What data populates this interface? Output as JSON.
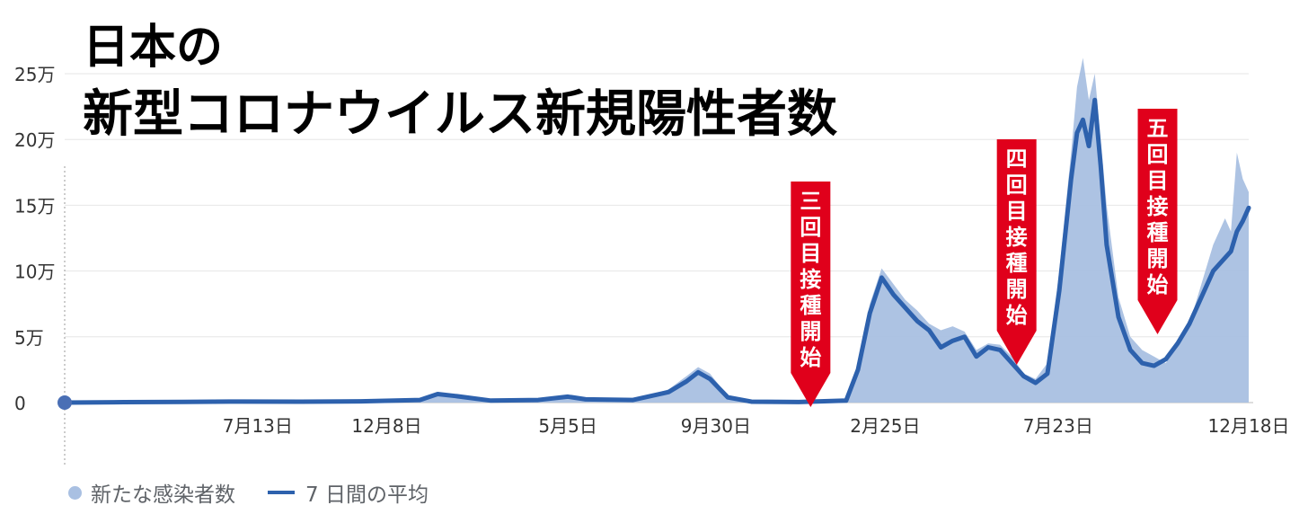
{
  "title_line1": "日本の",
  "title_line2": "新型コロナウイルス新規陽性者数",
  "chart_data": {
    "type": "area",
    "y_ticks": [
      "0",
      "5万",
      "10万",
      "15万",
      "20万",
      "25万"
    ],
    "y_tick_values": [
      0,
      50000,
      100000,
      150000,
      200000,
      250000
    ],
    "ylim": [
      0,
      260000
    ],
    "x_ticks": [
      "7月13日",
      "12月8日",
      "5月5日",
      "9月30日",
      "2月25日",
      "7月23日",
      "12月18日"
    ],
    "x_tick_values": [
      0.163,
      0.272,
      0.425,
      0.55,
      0.693,
      0.839,
      1.0
    ],
    "grid": true,
    "legend_position": "bottom-left",
    "series": [
      {
        "name": "新たな感染者数",
        "kind": "bars",
        "color": "#a9c0e2",
        "x": [
          0,
          0.05,
          0.1,
          0.15,
          0.2,
          0.25,
          0.3,
          0.315,
          0.33,
          0.36,
          0.4,
          0.425,
          0.44,
          0.48,
          0.51,
          0.525,
          0.535,
          0.545,
          0.56,
          0.58,
          0.62,
          0.66,
          0.67,
          0.68,
          0.69,
          0.7,
          0.71,
          0.72,
          0.73,
          0.74,
          0.75,
          0.76,
          0.77,
          0.78,
          0.79,
          0.8,
          0.81,
          0.82,
          0.83,
          0.84,
          0.85,
          0.855,
          0.86,
          0.865,
          0.87,
          0.875,
          0.88,
          0.89,
          0.9,
          0.91,
          0.92,
          0.93,
          0.94,
          0.95,
          0.96,
          0.97,
          0.98,
          0.985,
          0.99,
          0.995,
          1.0
        ],
        "values": [
          0,
          500,
          800,
          1500,
          1200,
          1500,
          3000,
          8000,
          6000,
          2000,
          2500,
          5500,
          3000,
          2500,
          10000,
          20000,
          27000,
          22000,
          5000,
          1000,
          500,
          2000,
          30000,
          75000,
          102000,
          90000,
          78000,
          70000,
          60000,
          55000,
          58000,
          54000,
          40000,
          45000,
          44000,
          35000,
          22000,
          18000,
          30000,
          100000,
          190000,
          240000,
          262000,
          230000,
          250000,
          200000,
          150000,
          80000,
          50000,
          40000,
          35000,
          30000,
          45000,
          60000,
          90000,
          120000,
          140000,
          130000,
          190000,
          170000,
          160000
        ]
      },
      {
        "name": "7 日間の平均",
        "kind": "line",
        "color": "#2d61ad",
        "x": [
          0,
          0.05,
          0.1,
          0.15,
          0.2,
          0.25,
          0.3,
          0.315,
          0.33,
          0.36,
          0.4,
          0.425,
          0.44,
          0.48,
          0.51,
          0.525,
          0.535,
          0.545,
          0.56,
          0.58,
          0.62,
          0.66,
          0.67,
          0.68,
          0.69,
          0.7,
          0.71,
          0.72,
          0.73,
          0.74,
          0.75,
          0.76,
          0.77,
          0.78,
          0.79,
          0.8,
          0.81,
          0.82,
          0.83,
          0.84,
          0.85,
          0.855,
          0.86,
          0.865,
          0.87,
          0.875,
          0.88,
          0.89,
          0.9,
          0.91,
          0.92,
          0.93,
          0.94,
          0.95,
          0.96,
          0.97,
          0.98,
          0.985,
          0.99,
          0.995,
          1.0
        ],
        "values": [
          0,
          300,
          500,
          800,
          700,
          900,
          2000,
          6500,
          5000,
          1500,
          2000,
          4500,
          2500,
          2000,
          8000,
          16000,
          23000,
          18000,
          4000,
          700,
          400,
          1500,
          25000,
          68000,
          95000,
          82000,
          72000,
          62000,
          55000,
          42000,
          47000,
          50000,
          35000,
          42000,
          40000,
          30000,
          20000,
          15000,
          22000,
          85000,
          170000,
          205000,
          215000,
          195000,
          230000,
          180000,
          120000,
          65000,
          40000,
          30000,
          28000,
          33000,
          45000,
          60000,
          80000,
          100000,
          110000,
          115000,
          130000,
          138000,
          148000
        ]
      }
    ],
    "annotations": [
      {
        "text": "三回目接種開始",
        "x": 0.63,
        "color": "#e0001b"
      },
      {
        "text": "四回目接種開始",
        "x": 0.804,
        "color": "#e0001b"
      },
      {
        "text": "五回目接種開始",
        "x": 0.923,
        "color": "#e0001b"
      }
    ]
  }
}
